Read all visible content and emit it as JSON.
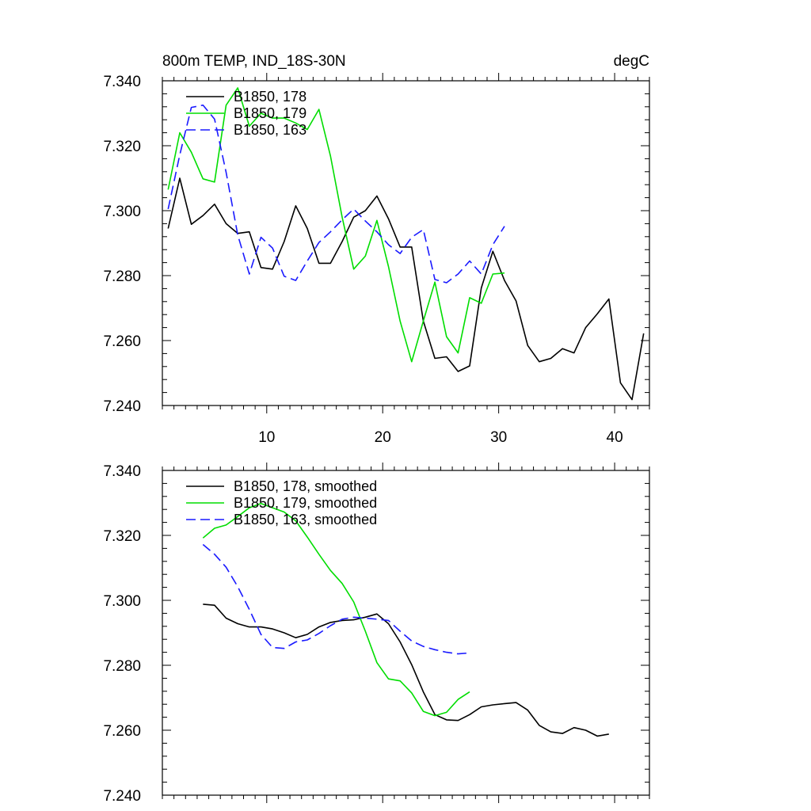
{
  "chart_data": [
    {
      "type": "line",
      "title_left": "800m TEMP, IND_18S-30N",
      "title_right": "degC",
      "xlim": [
        1,
        43
      ],
      "ylim": [
        7.24,
        7.34
      ],
      "xticks": [
        10,
        20,
        30,
        40
      ],
      "xtick_labels": [
        "10",
        "20",
        "30",
        "40"
      ],
      "show_xtick_labels": true,
      "yticks": [
        7.24,
        7.26,
        7.28,
        7.3,
        7.32,
        7.34
      ],
      "ytick_labels": [
        "7.240",
        "7.260",
        "7.280",
        "7.300",
        "7.320",
        "7.340"
      ],
      "legend_position": "top-left",
      "series": [
        {
          "name": "B1850, 178",
          "color": "#000000",
          "dash": "solid",
          "x": [
            1.5,
            2.5,
            3.5,
            4.5,
            5.5,
            6.5,
            7.5,
            8.5,
            9.5,
            10.5,
            11.5,
            12.5,
            13.5,
            14.5,
            15.5,
            16.5,
            17.5,
            18.5,
            19.5,
            20.5,
            21.5,
            22.5,
            23.5,
            24.5,
            25.5,
            26.5,
            27.5,
            28.5,
            29.5,
            30.5,
            31.5,
            32.5,
            33.5,
            34.5,
            35.5,
            36.5,
            37.5,
            38.5,
            39.5,
            40.5,
            41.5,
            42.5
          ],
          "y": [
            7.2945,
            7.31,
            7.2958,
            7.2985,
            7.302,
            7.296,
            7.293,
            7.2935,
            7.2825,
            7.282,
            7.2905,
            7.3015,
            7.2945,
            7.2838,
            7.2838,
            7.2905,
            7.298,
            7.3,
            7.3045,
            7.2975,
            7.2888,
            7.2888,
            7.266,
            7.2545,
            7.255,
            7.2505,
            7.2522,
            7.2762,
            7.2875,
            7.2785,
            7.2722,
            7.2585,
            7.2535,
            7.2545,
            7.2575,
            7.2562,
            7.264,
            7.2682,
            7.2728,
            7.247,
            7.2418,
            7.2622
          ]
        },
        {
          "name": "B1850, 179",
          "color": "#00dd00",
          "dash": "solid",
          "x": [
            1.5,
            2.5,
            3.5,
            4.5,
            5.5,
            6.5,
            7.5,
            8.5,
            9.5,
            10.5,
            11.5,
            12.5,
            13.5,
            14.5,
            15.5,
            16.5,
            17.5,
            18.5,
            19.5,
            20.5,
            21.5,
            22.5,
            23.5,
            24.5,
            25.5,
            26.5,
            27.5,
            28.5,
            29.5,
            30.5
          ],
          "y": [
            7.3065,
            7.324,
            7.318,
            7.3098,
            7.3088,
            7.3325,
            7.3378,
            7.326,
            7.33,
            7.3285,
            7.3285,
            7.327,
            7.325,
            7.3312,
            7.3168,
            7.298,
            7.282,
            7.286,
            7.297,
            7.2828,
            7.266,
            7.2535,
            7.266,
            7.278,
            7.2612,
            7.2562,
            7.2732,
            7.2715,
            7.2805,
            7.2808
          ]
        },
        {
          "name": "B1850, 163",
          "color": "#1a1aff",
          "dash": "dashed",
          "x": [
            1.5,
            2.5,
            3.5,
            4.5,
            5.5,
            6.5,
            7.5,
            8.5,
            9.5,
            10.5,
            11.5,
            12.5,
            13.5,
            14.5,
            15.5,
            16.5,
            17.5,
            18.5,
            19.5,
            20.5,
            21.5,
            22.5,
            23.5,
            24.5,
            25.5,
            26.5,
            27.5,
            28.5,
            29.5,
            30.5
          ],
          "y": [
            7.3005,
            7.3172,
            7.3318,
            7.3325,
            7.3282,
            7.3118,
            7.2925,
            7.2805,
            7.2918,
            7.2885,
            7.2798,
            7.2785,
            7.2845,
            7.2902,
            7.2935,
            7.2972,
            7.3005,
            7.2968,
            7.2935,
            7.2895,
            7.2868,
            7.2918,
            7.2942,
            7.2788,
            7.2778,
            7.2805,
            7.2845,
            7.2805,
            7.2895,
            7.2952
          ]
        }
      ]
    },
    {
      "type": "line",
      "xlim": [
        1,
        43
      ],
      "ylim": [
        7.24,
        7.34
      ],
      "xticks": [
        10,
        20,
        30,
        40
      ],
      "show_xtick_labels": false,
      "yticks": [
        7.24,
        7.26,
        7.28,
        7.3,
        7.32,
        7.34
      ],
      "ytick_labels": [
        "7.240",
        "7.260",
        "7.280",
        "7.300",
        "7.320",
        "7.340"
      ],
      "legend_position": "top-left",
      "series": [
        {
          "name": "B1850, 178, smoothed",
          "color": "#000000",
          "dash": "solid",
          "x": [
            4.5,
            5.5,
            6.5,
            7.5,
            8.5,
            9.5,
            10.5,
            11.5,
            12.5,
            13.5,
            14.5,
            15.5,
            16.5,
            17.5,
            18.5,
            19.5,
            20.5,
            21.5,
            22.5,
            23.5,
            24.5,
            25.5,
            26.5,
            27.5,
            28.5,
            29.5,
            30.5,
            31.5,
            32.5,
            33.5,
            34.5,
            35.5,
            36.5,
            37.5,
            38.5,
            39.5
          ],
          "y": [
            7.2988,
            7.2985,
            7.2945,
            7.2928,
            7.2918,
            7.2918,
            7.2912,
            7.29,
            7.2885,
            7.2895,
            7.2918,
            7.2932,
            7.2938,
            7.294,
            7.2948,
            7.2958,
            7.2928,
            7.2872,
            7.2802,
            7.2718,
            7.2648,
            7.2632,
            7.263,
            7.2648,
            7.2672,
            7.2678,
            7.2682,
            7.2685,
            7.2662,
            7.2615,
            7.2595,
            7.259,
            7.2608,
            7.26,
            7.2582,
            7.2588
          ]
        },
        {
          "name": "B1850, 179, smoothed",
          "color": "#00dd00",
          "dash": "solid",
          "x": [
            4.5,
            5.5,
            6.5,
            7.5,
            8.5,
            9.5,
            10.5,
            11.5,
            12.5,
            13.5,
            14.5,
            15.5,
            16.5,
            17.5,
            18.5,
            19.5,
            20.5,
            21.5,
            22.5,
            23.5,
            24.5,
            25.5,
            26.5,
            27.5
          ],
          "y": [
            7.3192,
            7.3222,
            7.3232,
            7.3258,
            7.3285,
            7.3298,
            7.3285,
            7.3272,
            7.3245,
            7.3195,
            7.3142,
            7.3092,
            7.3052,
            7.2995,
            7.2905,
            7.2808,
            7.2758,
            7.2752,
            7.2715,
            7.2658,
            7.2645,
            7.2655,
            7.2695,
            7.2718
          ]
        },
        {
          "name": "B1850, 163, smoothed",
          "color": "#1a1aff",
          "dash": "dashed",
          "x": [
            4.5,
            5.5,
            6.5,
            7.5,
            8.5,
            9.5,
            10.5,
            11.5,
            12.5,
            13.5,
            14.5,
            15.5,
            16.5,
            17.5,
            18.5,
            19.5,
            20.5,
            21.5,
            22.5,
            23.5,
            24.5,
            25.5,
            26.5,
            27.5
          ],
          "y": [
            7.3172,
            7.3142,
            7.3102,
            7.3042,
            7.2972,
            7.2895,
            7.2855,
            7.2852,
            7.2872,
            7.2878,
            7.2898,
            7.2922,
            7.2942,
            7.2948,
            7.2945,
            7.2942,
            7.2938,
            7.2905,
            7.2875,
            7.2858,
            7.2848,
            7.284,
            7.2835,
            7.2838
          ]
        }
      ]
    }
  ]
}
